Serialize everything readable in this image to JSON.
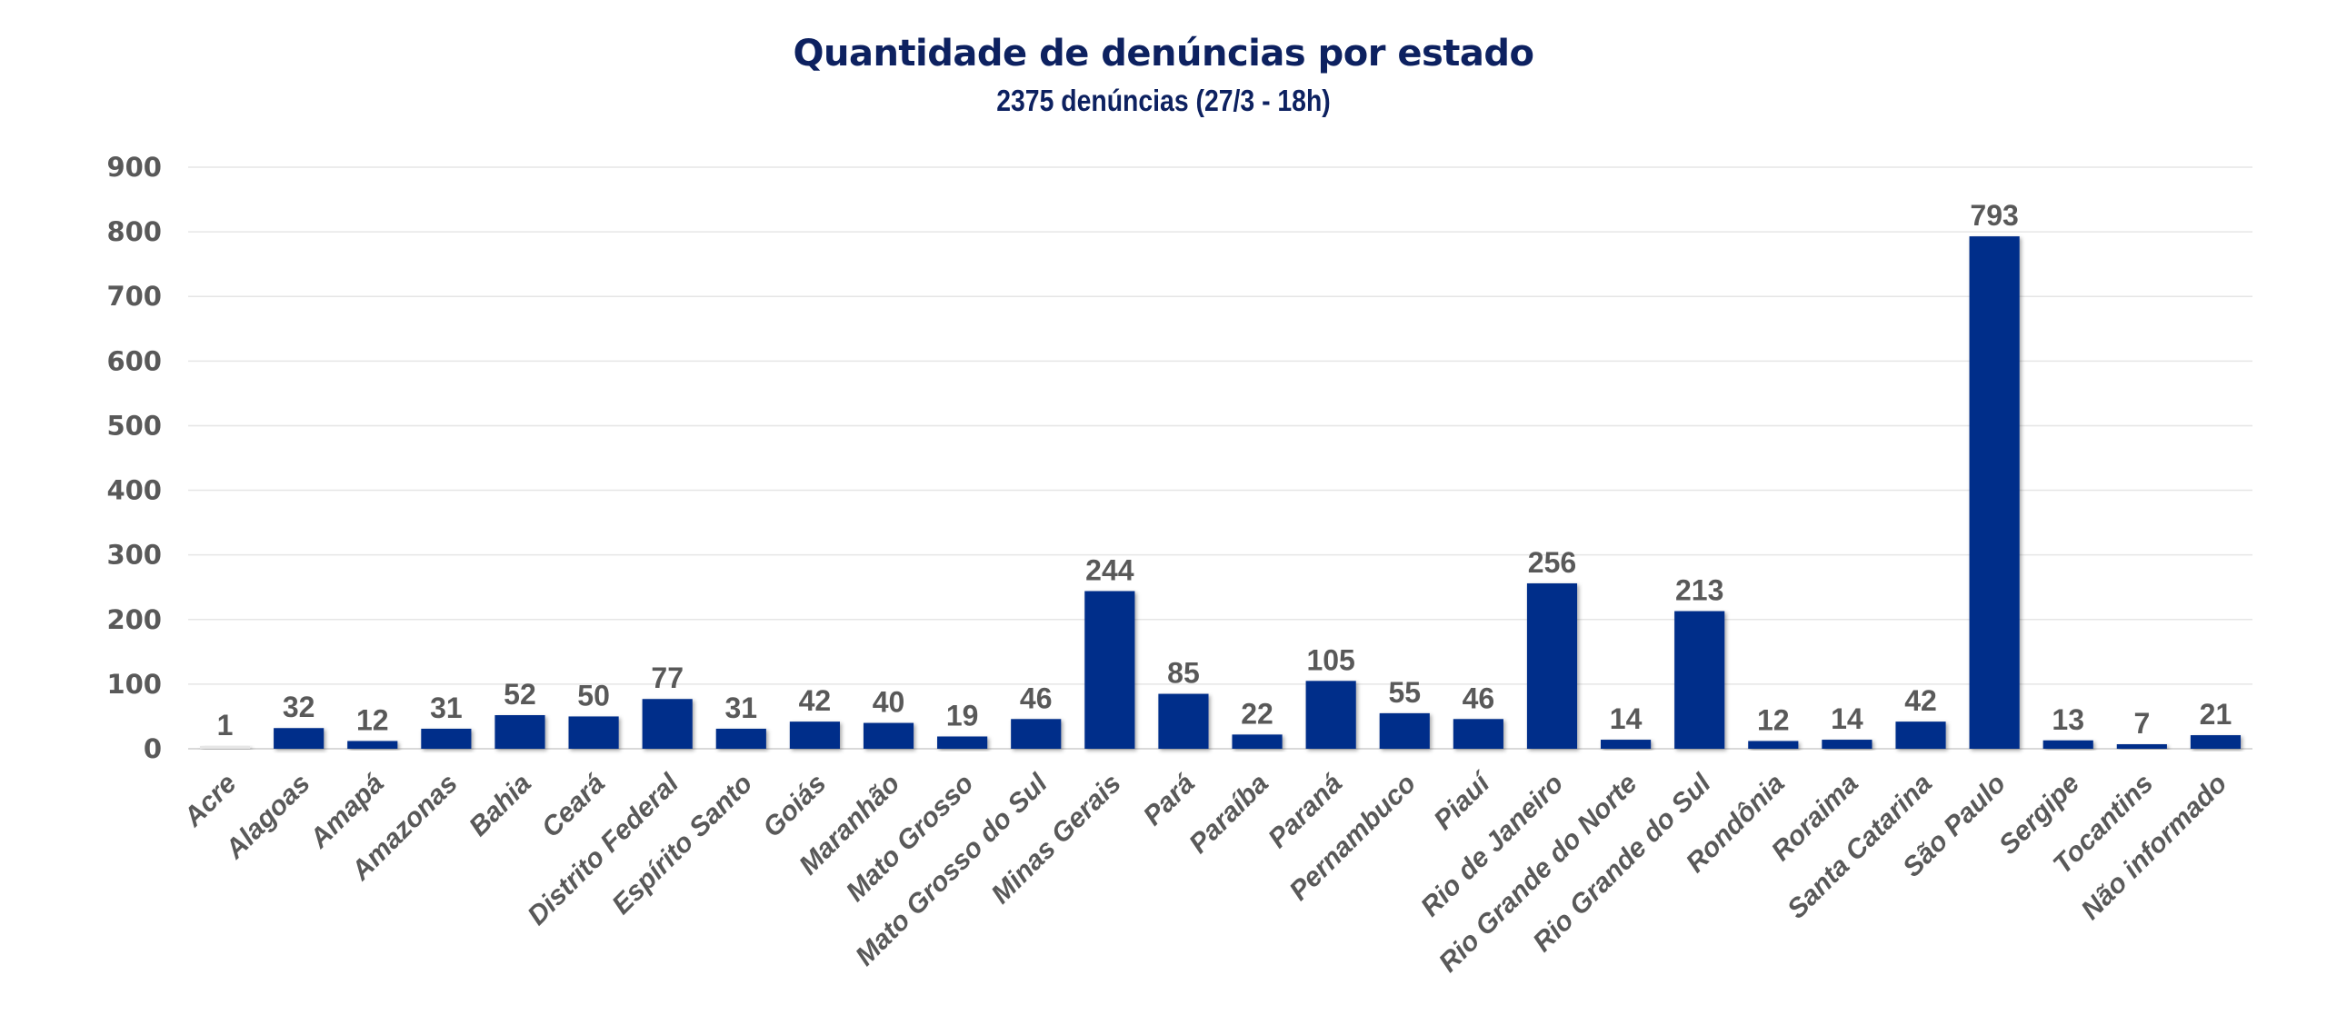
{
  "chart_data": {
    "type": "bar",
    "title": "Quantidade de denúncias por estado",
    "subtitle": "2375 denúncias (27/3 - 18h)",
    "xlabel": "",
    "ylabel": "",
    "ylim": [
      0,
      900
    ],
    "yticks": [
      0,
      100,
      200,
      300,
      400,
      500,
      600,
      700,
      800,
      900
    ],
    "grid": true,
    "legend": "none",
    "bar_color": "#002D8A",
    "highlight_color_first": "#E6E6E6",
    "categories": [
      "Acre",
      "Alagoas",
      "Amapá",
      "Amazonas",
      "Bahia",
      "Ceará",
      "Distrito Federal",
      "Espírito Santo",
      "Goiás",
      "Maranhão",
      "Mato Grosso",
      "Mato Grosso do Sul",
      "Minas Gerais",
      "Pará",
      "Paraíba",
      "Paraná",
      "Pernambuco",
      "Piauí",
      "Rio de Janeiro",
      "Rio Grande do Norte",
      "Rio Grande do Sul",
      "Rondônia",
      "Roraima",
      "Santa Catarina",
      "São Paulo",
      "Sergipe",
      "Tocantins",
      "Não informado"
    ],
    "values": [
      1,
      32,
      12,
      31,
      52,
      50,
      77,
      31,
      42,
      40,
      19,
      46,
      244,
      85,
      22,
      105,
      55,
      46,
      256,
      14,
      213,
      12,
      14,
      42,
      793,
      13,
      7,
      21
    ]
  }
}
